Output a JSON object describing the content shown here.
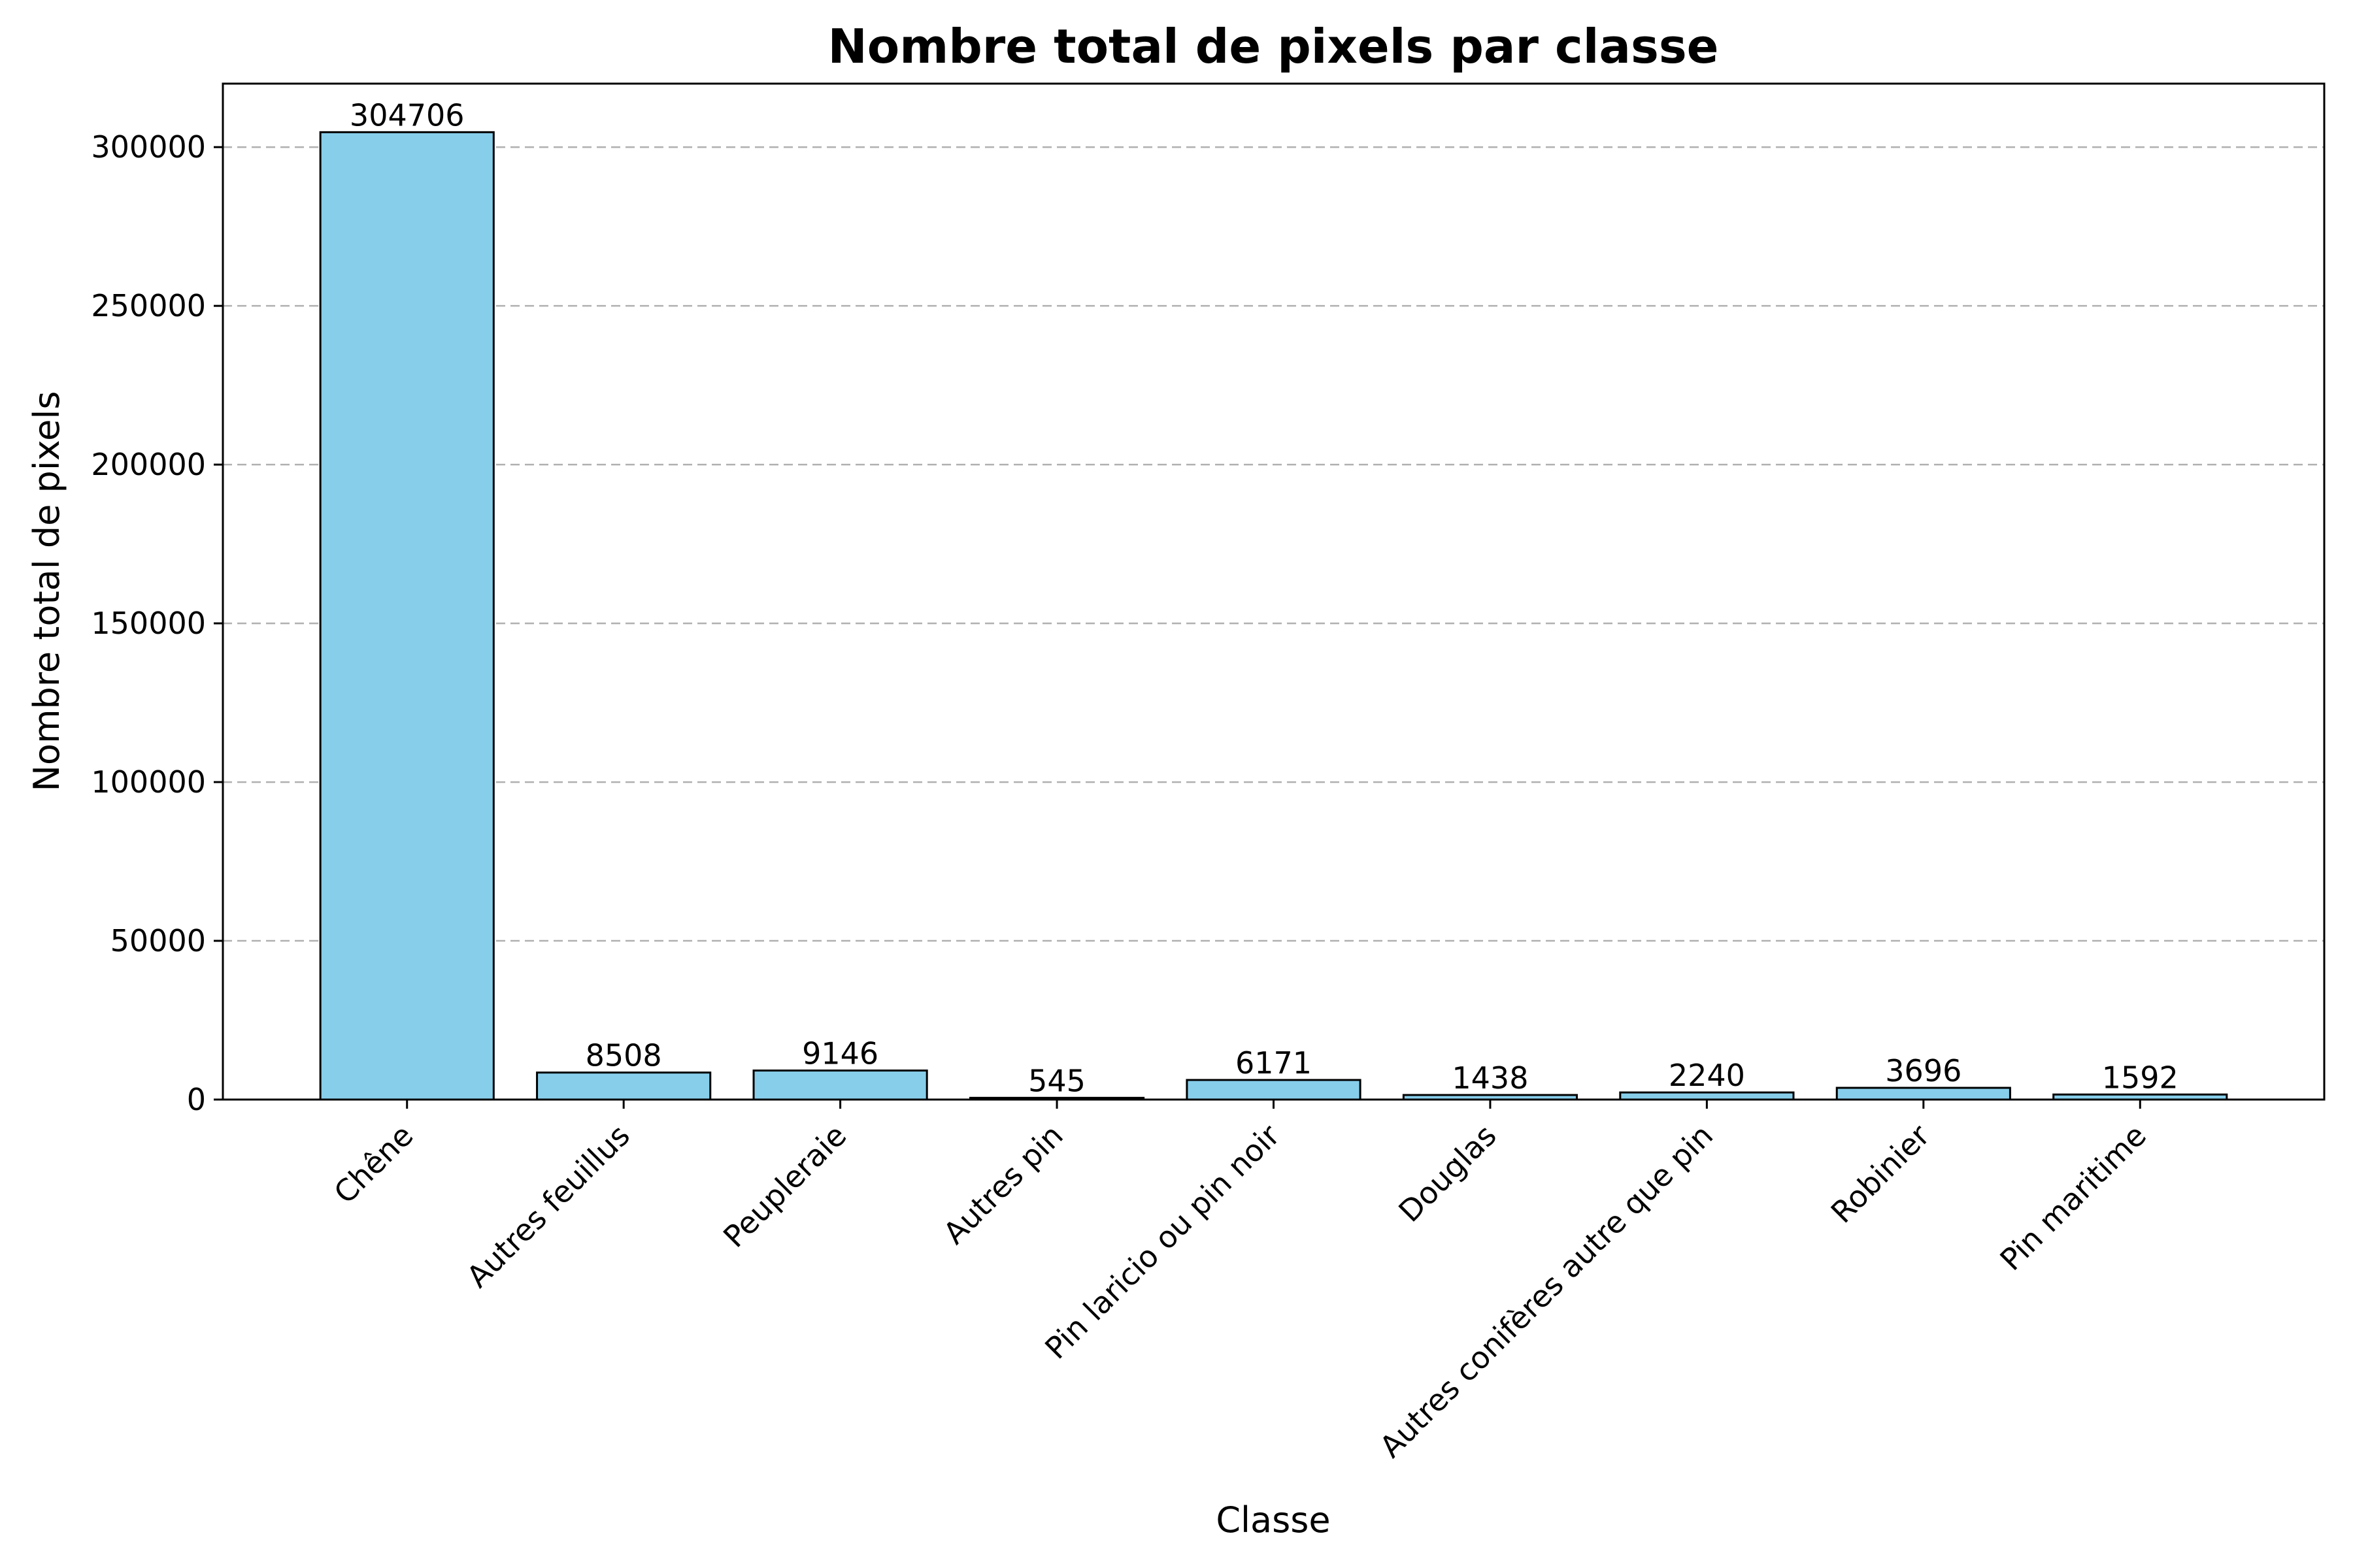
{
  "chart_data": {
    "type": "bar",
    "title": "Nombre total de pixels par classe",
    "xlabel": "Classe",
    "ylabel": "Nombre total de pixels",
    "categories": [
      "Chêne",
      "Autres feuillus",
      "Peupleraie",
      "Autres pin",
      "Pin laricio ou pin noir",
      "Douglas",
      "Autres conifères autre que pin",
      "Robinier",
      "Pin maritime"
    ],
    "values": [
      304706,
      8508,
      9146,
      545,
      6171,
      1438,
      2240,
      3696,
      1592
    ],
    "ylim": [
      0,
      320000
    ],
    "yticks": [
      0,
      50000,
      100000,
      150000,
      200000,
      250000,
      300000
    ],
    "grid": "y-dashed",
    "bar_color": "#87CEEB",
    "bar_edge_color": "#000000"
  }
}
